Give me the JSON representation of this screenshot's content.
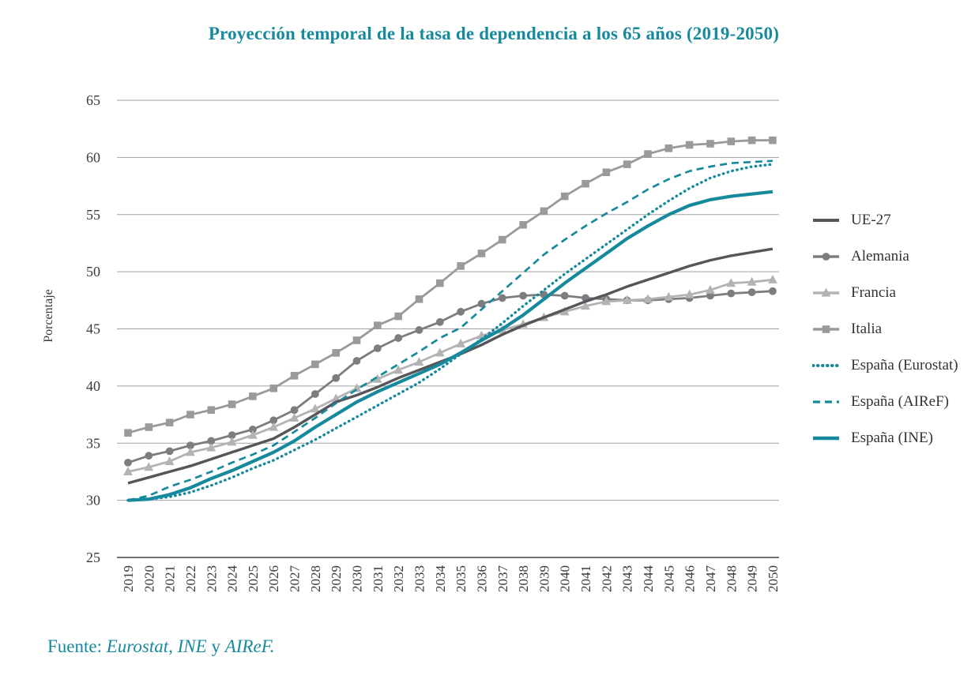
{
  "title": "Proyección temporal de la tasa de dependencia a los 65 años (2019-2050)",
  "footer": {
    "prefix": "Fuente:",
    "italic1": "Eurostat, INE",
    "conjunction": "y",
    "italic2": "AIReF."
  },
  "colors": {
    "teal": "#17899c",
    "ue27_gray": "#55555a",
    "alemania_gray": "#7d7d80",
    "francia_gray": "#b3b3b5",
    "italia_gray": "#9a9a9c",
    "gridline": "#a2a2a2",
    "axis_line": "#454545",
    "tick_text": "#3a3a3a"
  },
  "chart_data": {
    "type": "line",
    "title": "Proyección temporal de la tasa de dependencia a los 65 años (2019-2050)",
    "xlabel": "",
    "ylabel": "Porcentaje",
    "ylim": [
      25,
      65
    ],
    "ytick_step": 5,
    "grid": "horizontal",
    "legend_position": "right",
    "x": [
      2019,
      2020,
      2021,
      2022,
      2023,
      2024,
      2025,
      2026,
      2027,
      2028,
      2029,
      2030,
      2031,
      2032,
      2033,
      2034,
      2035,
      2036,
      2037,
      2038,
      2039,
      2040,
      2041,
      2042,
      2043,
      2044,
      2045,
      2046,
      2047,
      2048,
      2049,
      2050
    ],
    "series": [
      {
        "name": "UE-27",
        "color": "#55555a",
        "width": 3.4,
        "dash": null,
        "marker": null,
        "values": [
          31.5,
          32.0,
          32.5,
          33.0,
          33.6,
          34.2,
          34.8,
          35.4,
          36.4,
          37.5,
          38.6,
          39.2,
          39.9,
          40.7,
          41.4,
          42.1,
          42.8,
          43.6,
          44.5,
          45.3,
          46.0,
          46.7,
          47.4,
          48.0,
          48.7,
          49.3,
          49.9,
          50.5,
          51.0,
          51.4,
          51.7,
          52.0
        ]
      },
      {
        "name": "Alemania",
        "color": "#7d7d80",
        "width": 2.8,
        "dash": null,
        "marker": "circle",
        "values": [
          33.3,
          33.9,
          34.3,
          34.8,
          35.2,
          35.7,
          36.2,
          37.0,
          37.9,
          39.3,
          40.7,
          42.2,
          43.3,
          44.2,
          44.9,
          45.6,
          46.5,
          47.2,
          47.7,
          47.9,
          48.0,
          47.9,
          47.7,
          47.6,
          47.5,
          47.5,
          47.6,
          47.7,
          47.9,
          48.1,
          48.2,
          48.3
        ]
      },
      {
        "name": "Francia",
        "color": "#b3b3b5",
        "width": 2.8,
        "dash": null,
        "marker": "triangle",
        "values": [
          32.5,
          32.9,
          33.4,
          34.2,
          34.6,
          35.1,
          35.7,
          36.4,
          37.2,
          38.0,
          38.9,
          39.8,
          40.6,
          41.4,
          42.1,
          42.9,
          43.7,
          44.4,
          44.9,
          45.4,
          46.0,
          46.5,
          47.0,
          47.4,
          47.5,
          47.6,
          47.8,
          48.0,
          48.4,
          49.0,
          49.1,
          49.3
        ]
      },
      {
        "name": "Italia",
        "color": "#9a9a9c",
        "width": 2.8,
        "dash": null,
        "marker": "square",
        "values": [
          35.9,
          36.4,
          36.8,
          37.5,
          37.9,
          38.4,
          39.1,
          39.8,
          40.9,
          41.9,
          42.9,
          44.0,
          45.3,
          46.1,
          47.6,
          49.0,
          50.5,
          51.6,
          52.8,
          54.1,
          55.3,
          56.6,
          57.7,
          58.7,
          59.4,
          60.3,
          60.8,
          61.1,
          61.2,
          61.4,
          61.5,
          61.5
        ]
      },
      {
        "name": "España (Eurostat)",
        "color": "#17899c",
        "width": 3.4,
        "dash": "0.5 5.5",
        "marker": null,
        "linecap": "round",
        "values": [
          30.0,
          30.1,
          30.3,
          30.7,
          31.3,
          32.0,
          32.8,
          33.5,
          34.4,
          35.3,
          36.3,
          37.3,
          38.3,
          39.3,
          40.3,
          41.5,
          42.8,
          44.1,
          45.5,
          47.0,
          48.4,
          49.8,
          51.1,
          52.4,
          53.7,
          55.0,
          56.2,
          57.3,
          58.2,
          58.8,
          59.2,
          59.4
        ]
      },
      {
        "name": "España (AIReF)",
        "color": "#17899c",
        "width": 2.7,
        "dash": "9 6",
        "marker": null,
        "values": [
          30.0,
          30.4,
          31.2,
          31.8,
          32.5,
          33.3,
          34.0,
          34.8,
          36.0,
          37.2,
          38.5,
          39.7,
          40.8,
          41.9,
          43.0,
          44.2,
          45.1,
          46.7,
          48.3,
          49.9,
          51.5,
          52.8,
          54.0,
          55.1,
          56.1,
          57.2,
          58.1,
          58.8,
          59.2,
          59.5,
          59.6,
          59.7
        ]
      },
      {
        "name": "España (INE)",
        "color": "#17899c",
        "width": 4.2,
        "dash": null,
        "marker": null,
        "values": [
          30.0,
          30.1,
          30.5,
          31.1,
          31.9,
          32.6,
          33.4,
          34.2,
          35.2,
          36.4,
          37.5,
          38.6,
          39.5,
          40.3,
          41.1,
          41.9,
          42.9,
          44.0,
          45.0,
          46.2,
          47.6,
          49.0,
          50.3,
          51.6,
          52.9,
          54.0,
          55.0,
          55.8,
          56.3,
          56.6,
          56.8,
          57.0
        ]
      }
    ]
  }
}
